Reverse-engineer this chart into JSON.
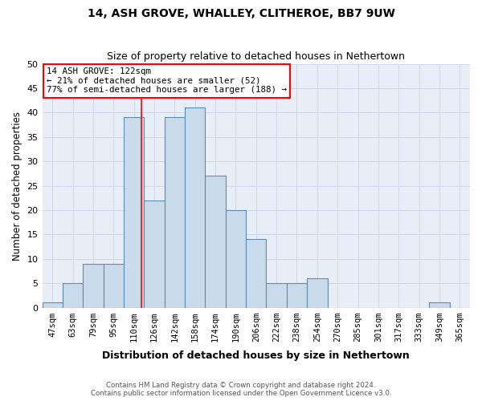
{
  "title1": "14, ASH GROVE, WHALLEY, CLITHEROE, BB7 9UW",
  "title2": "Size of property relative to detached houses in Nethertown",
  "xlabel": "Distribution of detached houses by size in Nethertown",
  "ylabel": "Number of detached properties",
  "bin_labels": [
    "47sqm",
    "63sqm",
    "79sqm",
    "95sqm",
    "110sqm",
    "126sqm",
    "142sqm",
    "158sqm",
    "174sqm",
    "190sqm",
    "206sqm",
    "222sqm",
    "238sqm",
    "254sqm",
    "270sqm",
    "285sqm",
    "301sqm",
    "317sqm",
    "333sqm",
    "349sqm",
    "365sqm"
  ],
  "bar_heights": [
    1,
    5,
    9,
    9,
    39,
    22,
    39,
    41,
    27,
    20,
    14,
    5,
    5,
    6,
    0,
    0,
    0,
    0,
    0,
    1,
    0
  ],
  "bar_color": "#c9daea",
  "bar_edgecolor": "#5b8db8",
  "grid_color": "#d0d8e8",
  "bg_color": "#e8eef8",
  "red_line_idx": 4.375,
  "annotation_box_text": "14 ASH GROVE: 122sqm\n← 21% of detached houses are smaller (52)\n77% of semi-detached houses are larger (188) →",
  "ylim": [
    0,
    50
  ],
  "yticks": [
    0,
    5,
    10,
    15,
    20,
    25,
    30,
    35,
    40,
    45,
    50
  ],
  "footer_line1": "Contains HM Land Registry data © Crown copyright and database right 2024.",
  "footer_line2": "Contains public sector information licensed under the Open Government Licence v3.0."
}
